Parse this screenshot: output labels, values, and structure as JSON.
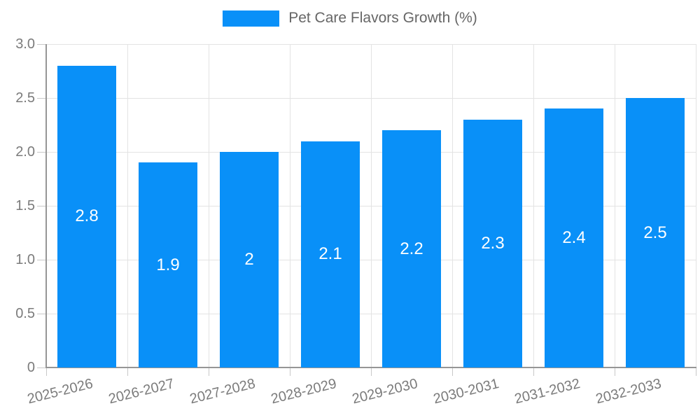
{
  "chart_data": {
    "type": "bar",
    "title": "Pet Care Flavors Growth (%)",
    "categories": [
      "2025-2026",
      "2026-2027",
      "2027-2028",
      "2028-2029",
      "2029-2030",
      "2030-2031",
      "2031-2032",
      "2032-2033"
    ],
    "values": [
      2.8,
      1.9,
      2,
      2.1,
      2.2,
      2.3,
      2.4,
      2.5
    ],
    "value_labels": [
      "2.8",
      "1.9",
      "2",
      "2.1",
      "2.2",
      "2.3",
      "2.4",
      "2.5"
    ],
    "xlabel": "",
    "ylabel": "",
    "ylim": [
      0,
      3
    ],
    "yticks": [
      0,
      0.5,
      1,
      1.5,
      2,
      2.5,
      3
    ],
    "ytick_labels": [
      "0",
      "0.5",
      "1.0",
      "1.5",
      "2.0",
      "2.5",
      "3.0"
    ],
    "grid": true,
    "legend_position": "top-center",
    "bar_color": "#0990f8",
    "bar_label_color": "#ffffff"
  }
}
